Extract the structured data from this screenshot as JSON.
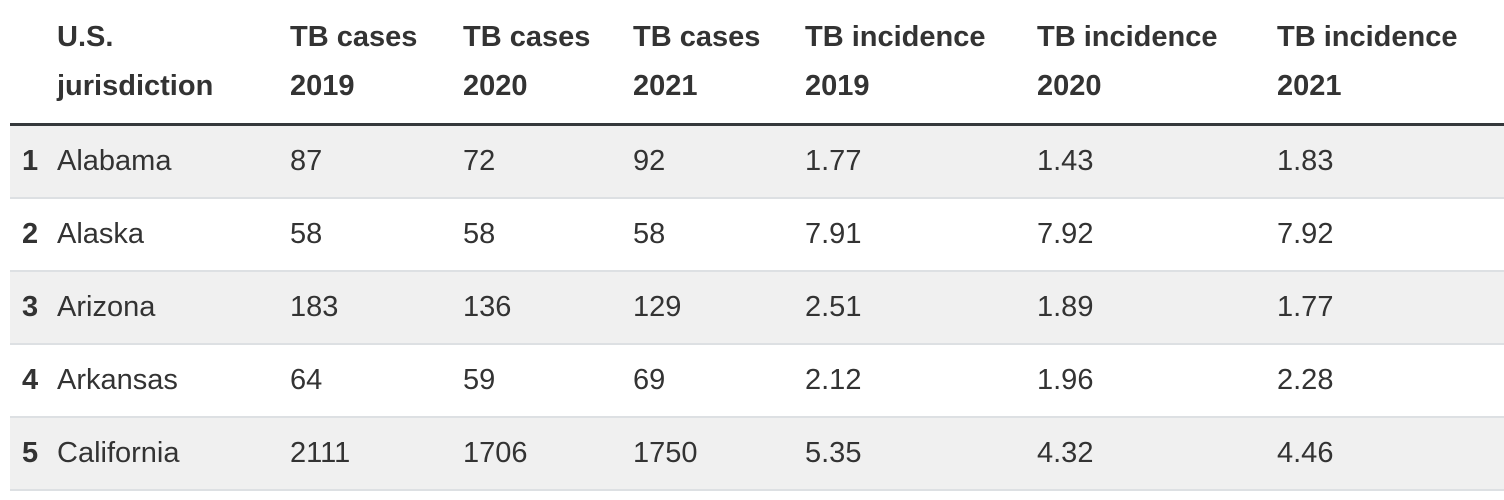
{
  "table": {
    "header": {
      "cols": [
        {
          "line1": "U.S.",
          "line2": "jurisdiction"
        },
        {
          "line1": "TB cases",
          "line2": "2019"
        },
        {
          "line1": "TB cases",
          "line2": "2020"
        },
        {
          "line1": "TB cases",
          "line2": "2021"
        },
        {
          "line1": "TB incidence",
          "line2": "2019"
        },
        {
          "line1": "TB incidence",
          "line2": "2020"
        },
        {
          "line1": "TB incidence",
          "line2": "2021"
        }
      ]
    },
    "rows": [
      {
        "num": "1",
        "cells": [
          "Alabama",
          "87",
          "72",
          "92",
          "1.77",
          "1.43",
          "1.83"
        ]
      },
      {
        "num": "2",
        "cells": [
          "Alaska",
          "58",
          "58",
          "58",
          "7.91",
          "7.92",
          "7.92"
        ]
      },
      {
        "num": "3",
        "cells": [
          "Arizona",
          "183",
          "136",
          "129",
          "2.51",
          "1.89",
          "1.77"
        ]
      },
      {
        "num": "4",
        "cells": [
          "Arkansas",
          "64",
          "59",
          "69",
          "2.12",
          "1.96",
          "2.28"
        ]
      },
      {
        "num": "5",
        "cells": [
          "California",
          "2111",
          "1706",
          "1750",
          "5.35",
          "4.32",
          "4.46"
        ]
      }
    ]
  },
  "chart_data": {
    "type": "table",
    "columns": [
      "U.S. jurisdiction",
      "TB cases 2019",
      "TB cases 2020",
      "TB cases 2021",
      "TB incidence 2019",
      "TB incidence 2020",
      "TB incidence 2021"
    ],
    "row_numbers": [
      1,
      2,
      3,
      4,
      5
    ],
    "rows": [
      [
        "Alabama",
        87,
        72,
        92,
        1.77,
        1.43,
        1.83
      ],
      [
        "Alaska",
        58,
        58,
        58,
        7.91,
        7.92,
        7.92
      ],
      [
        "Arizona",
        183,
        136,
        129,
        2.51,
        1.89,
        1.77
      ],
      [
        "Arkansas",
        64,
        59,
        69,
        2.12,
        1.96,
        2.28
      ],
      [
        "California",
        2111,
        1706,
        1750,
        5.35,
        4.32,
        4.46
      ]
    ]
  },
  "colors": {
    "text": "#333333",
    "stripe_background": "#f0f0f0",
    "row_separator": "#dde0e3",
    "header_rule": "#35383b",
    "background": "#ffffff"
  }
}
